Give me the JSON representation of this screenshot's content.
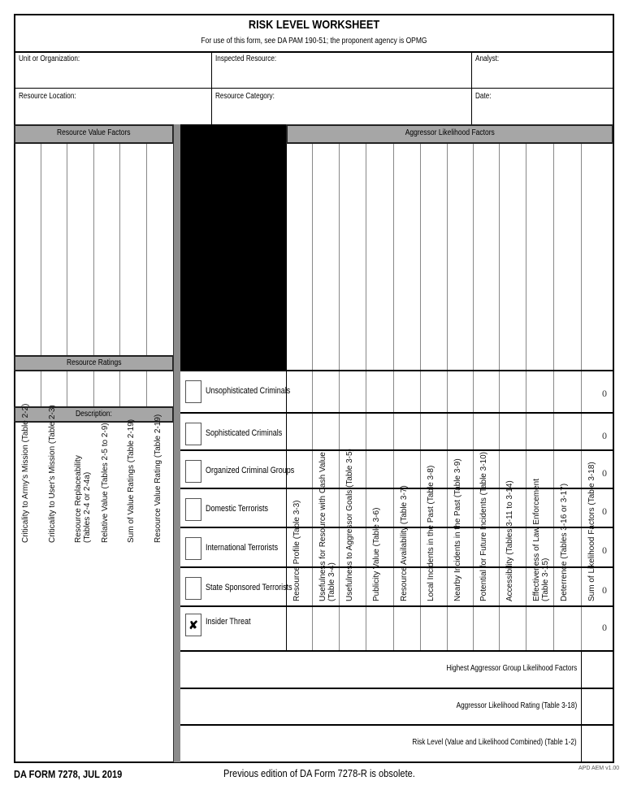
{
  "title": "RISK LEVEL WORKSHEET",
  "subtitle": "For use of this form, see DA PAM 190-51; the proponent agency is OPMG",
  "fields": {
    "unit": "Unit or Organization:",
    "inspected": "Inspected Resource:",
    "analyst": "Analyst:",
    "location": "Resource Location:",
    "category": "Resource Category:",
    "date": "Date:"
  },
  "value_section": {
    "header": "Resource Value Factors",
    "ratings": "Resource Ratings",
    "description": "Description:",
    "columns": [
      "Criticality to Army's Mission (Table 2-2)",
      "Criticality to User's Mission (Table 2-3)",
      "Resource Replaceability\n(Tables 2-4 or 2-4a)",
      "Relative Value (Tables 2-5 to 2-9)",
      "Sum of Value Ratings (Table 2-19)",
      "Resource Value Rating (Table 2-19)"
    ]
  },
  "likelihood_section": {
    "header": "Aggressor Likelihood Factors",
    "columns": [
      "Resource Profile (Table 3-3)",
      "Usefulness for Resource with Cash Value\n(Table 3-4)",
      "Usefulness to Aggressor Goals (Table 3-5)",
      "Publicity Value (Table 3-6)",
      "Resource Availability (Table 3-7)",
      "Local Incidents in the Past (Table 3-8)",
      "Nearby Incidents in the Past (Table 3-9)",
      "Potential for Future Incidents (Table 3-10)",
      "Accessibility (Tables 3-11 to 3-14)",
      "Effectiveness of Law Enforcement\n(Table 3-15)",
      "Deterrence (Tables 3-16 or 3-17)",
      "Sum of Likelihood Factors (Table 3-18)"
    ],
    "aggressors": [
      {
        "label": "Unsophisticated Criminals",
        "checked": false,
        "sum": "0"
      },
      {
        "label": "Sophisticated Criminals",
        "checked": false,
        "sum": "0"
      },
      {
        "label": "Organized Criminal Groups",
        "checked": false,
        "sum": "0"
      },
      {
        "label": "Domestic Terrorists",
        "checked": false,
        "sum": "0"
      },
      {
        "label": "International Terrorists",
        "checked": false,
        "sum": "0"
      },
      {
        "label": "State Sponsored Terrorists",
        "checked": false,
        "sum": "0"
      },
      {
        "label": "Insider Threat",
        "checked": true,
        "check_mark": "✘",
        "sum": "0"
      }
    ],
    "summary": [
      "Highest Aggressor Group Likelihood Factors",
      "Aggressor Likelihood Rating (Table 3-18)",
      "Risk Level (Value and Likelihood Combined) (Table 1-2)"
    ]
  },
  "footer": {
    "form": "DA FORM 7278, JUL 2019",
    "notice": "Previous edition of DA Form 7278-R is obsolete.",
    "version": "APD AEM v1.00"
  }
}
